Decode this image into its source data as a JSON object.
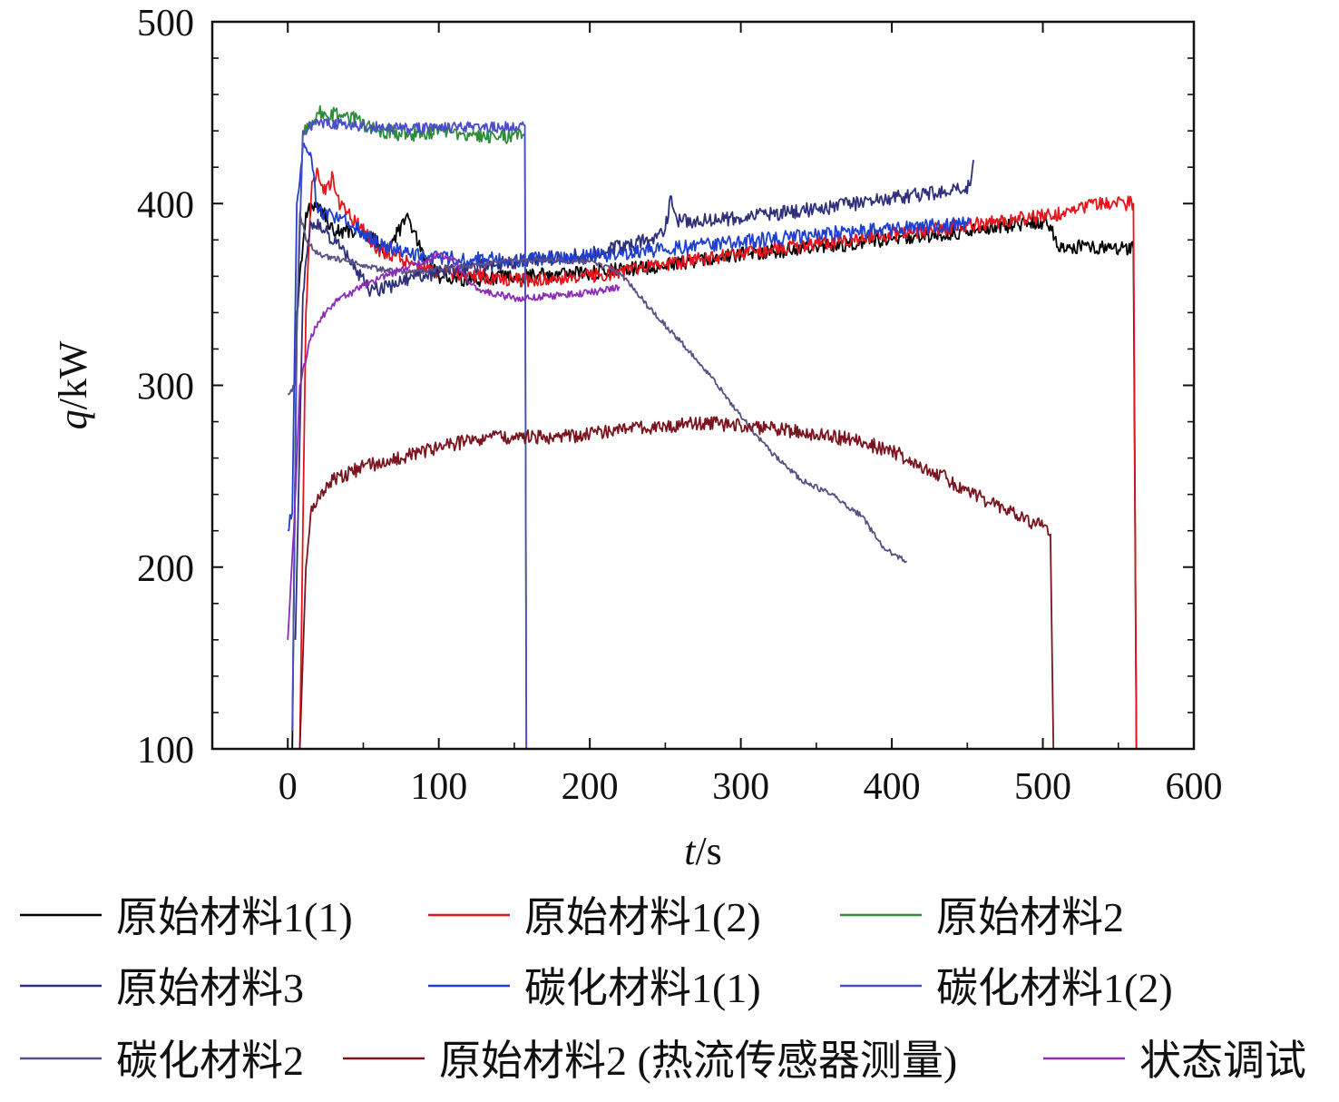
{
  "chart_data": {
    "type": "line",
    "xlabel": {
      "var": "t",
      "unit": "/s"
    },
    "ylabel": {
      "var": "q",
      "unit": "/kW"
    },
    "xlim": [
      -50,
      600
    ],
    "ylim": [
      100,
      500
    ],
    "x_ticks": [
      0,
      100,
      200,
      300,
      400,
      500,
      600
    ],
    "y_ticks": [
      100,
      200,
      300,
      400,
      500
    ],
    "x_tick_labels": [
      "0",
      "100",
      "200",
      "300",
      "400",
      "500",
      "600"
    ],
    "y_tick_labels": [
      "100",
      "200",
      "300",
      "400",
      "500"
    ],
    "grid": false,
    "legend_position": "bottom",
    "series": [
      {
        "name": "原始材料1(1)",
        "color": "#000000",
        "noise": 4,
        "points": [
          [
            3,
            100
          ],
          [
            6,
            340
          ],
          [
            12,
            395
          ],
          [
            20,
            400
          ],
          [
            30,
            385
          ],
          [
            50,
            385
          ],
          [
            65,
            375
          ],
          [
            80,
            392
          ],
          [
            90,
            370
          ],
          [
            100,
            360
          ],
          [
            120,
            358
          ],
          [
            150,
            360
          ],
          [
            200,
            362
          ],
          [
            250,
            366
          ],
          [
            300,
            372
          ],
          [
            350,
            376
          ],
          [
            400,
            380
          ],
          [
            450,
            385
          ],
          [
            500,
            390
          ],
          [
            505,
            388
          ],
          [
            510,
            376
          ],
          [
            540,
            376
          ],
          [
            560,
            375
          ],
          [
            562,
            100
          ]
        ]
      },
      {
        "name": "原始材料1(2)",
        "color": "#e8141c",
        "noise": 4,
        "points": [
          [
            8,
            100
          ],
          [
            12,
            340
          ],
          [
            16,
            412
          ],
          [
            20,
            418
          ],
          [
            25,
            405
          ],
          [
            30,
            415
          ],
          [
            35,
            398
          ],
          [
            40,
            395
          ],
          [
            45,
            390
          ],
          [
            60,
            375
          ],
          [
            80,
            368
          ],
          [
            100,
            362
          ],
          [
            150,
            358
          ],
          [
            200,
            360
          ],
          [
            250,
            366
          ],
          [
            300,
            373
          ],
          [
            350,
            378
          ],
          [
            400,
            383
          ],
          [
            450,
            388
          ],
          [
            500,
            393
          ],
          [
            520,
            396
          ],
          [
            540,
            400
          ],
          [
            560,
            400
          ],
          [
            562,
            100
          ]
        ]
      },
      {
        "name": "原始材料2",
        "color": "#2e8b3a",
        "noise": 4,
        "points": [
          [
            3,
            110
          ],
          [
            6,
            330
          ],
          [
            10,
            440
          ],
          [
            20,
            450
          ],
          [
            40,
            448
          ],
          [
            60,
            440
          ],
          [
            80,
            438
          ],
          [
            100,
            440
          ],
          [
            120,
            437
          ],
          [
            140,
            437
          ],
          [
            157,
            437
          ],
          [
            158,
            100
          ]
        ]
      },
      {
        "name": "原始材料3",
        "color": "#2f2f7a",
        "noise": 4,
        "points": [
          [
            5,
            160
          ],
          [
            10,
            350
          ],
          [
            15,
            390
          ],
          [
            25,
            385
          ],
          [
            40,
            370
          ],
          [
            55,
            352
          ],
          [
            70,
            355
          ],
          [
            85,
            360
          ],
          [
            100,
            362
          ],
          [
            150,
            368
          ],
          [
            200,
            372
          ],
          [
            240,
            380
          ],
          [
            250,
            386
          ],
          [
            254,
            404
          ],
          [
            258,
            390
          ],
          [
            300,
            392
          ],
          [
            350,
            397
          ],
          [
            400,
            403
          ],
          [
            440,
            407
          ],
          [
            452,
            410
          ],
          [
            454,
            424
          ]
        ]
      },
      {
        "name": "碳化材料1(1)",
        "color": "#1f3fd0",
        "noise": 4,
        "points": [
          [
            0,
            220
          ],
          [
            3,
            230
          ],
          [
            6,
            400
          ],
          [
            10,
            432
          ],
          [
            15,
            428
          ],
          [
            20,
            395
          ],
          [
            40,
            390
          ],
          [
            60,
            378
          ],
          [
            80,
            372
          ],
          [
            100,
            370
          ],
          [
            150,
            369
          ],
          [
            200,
            371
          ],
          [
            250,
            375
          ],
          [
            300,
            379
          ],
          [
            350,
            383
          ],
          [
            400,
            386
          ],
          [
            450,
            389
          ],
          [
            452,
            390
          ]
        ]
      },
      {
        "name": "碳化材料1(2)",
        "color": "#4a4cc8",
        "noise": 3,
        "points": [
          [
            3,
            110
          ],
          [
            6,
            330
          ],
          [
            10,
            440
          ],
          [
            20,
            445
          ],
          [
            40,
            443
          ],
          [
            60,
            442
          ],
          [
            80,
            441
          ],
          [
            100,
            442
          ],
          [
            120,
            442
          ],
          [
            140,
            442
          ],
          [
            157,
            443
          ],
          [
            158,
            100
          ]
        ]
      },
      {
        "name": "碳化材料2",
        "color": "#5b4f86",
        "noise": 1.5,
        "points": [
          [
            0,
            295
          ],
          [
            5,
            300
          ],
          [
            8,
            395
          ],
          [
            12,
            380
          ],
          [
            20,
            372
          ],
          [
            40,
            368
          ],
          [
            60,
            364
          ],
          [
            80,
            362
          ],
          [
            100,
            364
          ],
          [
            140,
            368
          ],
          [
            160,
            369
          ],
          [
            200,
            368
          ],
          [
            220,
            362
          ],
          [
            240,
            342
          ],
          [
            260,
            324
          ],
          [
            280,
            305
          ],
          [
            300,
            283
          ],
          [
            320,
            263
          ],
          [
            340,
            248
          ],
          [
            360,
            240
          ],
          [
            380,
            228
          ],
          [
            395,
            210
          ],
          [
            410,
            203
          ]
        ]
      },
      {
        "name": "原始材料2 (热流传感器测量)",
        "color": "#7a1520",
        "noise": 4,
        "points": [
          [
            8,
            100
          ],
          [
            12,
            200
          ],
          [
            15,
            228
          ],
          [
            20,
            240
          ],
          [
            30,
            248
          ],
          [
            50,
            255
          ],
          [
            75,
            260
          ],
          [
            100,
            266
          ],
          [
            125,
            270
          ],
          [
            150,
            272
          ],
          [
            175,
            271
          ],
          [
            200,
            273
          ],
          [
            225,
            276
          ],
          [
            250,
            278
          ],
          [
            275,
            279
          ],
          [
            300,
            278
          ],
          [
            325,
            276
          ],
          [
            350,
            273
          ],
          [
            375,
            270
          ],
          [
            400,
            264
          ],
          [
            425,
            254
          ],
          [
            450,
            242
          ],
          [
            475,
            232
          ],
          [
            500,
            222
          ],
          [
            505,
            218
          ],
          [
            507,
            100
          ]
        ]
      },
      {
        "name": "状态调试",
        "color": "#8c2db5",
        "noise": 2,
        "points": [
          [
            0,
            160
          ],
          [
            4,
            220
          ],
          [
            8,
            300
          ],
          [
            15,
            325
          ],
          [
            20,
            335
          ],
          [
            30,
            345
          ],
          [
            50,
            355
          ],
          [
            70,
            362
          ],
          [
            90,
            368
          ],
          [
            100,
            372
          ],
          [
            110,
            370
          ],
          [
            120,
            356
          ],
          [
            130,
            352
          ],
          [
            150,
            348
          ],
          [
            170,
            349
          ],
          [
            190,
            350
          ],
          [
            200,
            351
          ],
          [
            220,
            354
          ]
        ]
      }
    ]
  }
}
